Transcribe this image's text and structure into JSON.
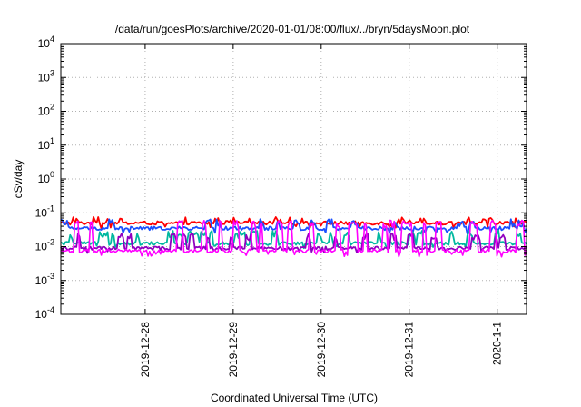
{
  "chart_data": {
    "type": "line",
    "title": "/data/run/goesPlots/archive/2020-01-01/08:00/flux/../bryn/5daysMoon.plot",
    "xlabel": "Coordinated Universal Time (UTC)",
    "ylabel": "cSv/day",
    "yscale": "log",
    "ylim": [
      0.0001,
      10000
    ],
    "xlim": [
      "2019-12-27T01:00",
      "2020-01-01T08:00"
    ],
    "grid": true,
    "x_ticks": [
      {
        "value": "2019-12-28T00:00",
        "label": "2019-12-28"
      },
      {
        "value": "2019-12-29T00:00",
        "label": "2019-12-29"
      },
      {
        "value": "2019-12-30T00:00",
        "label": "2019-12-30"
      },
      {
        "value": "2019-12-31T00:00",
        "label": "2019-12-31"
      },
      {
        "value": "2020-01-01T00:00",
        "label": "2020-1-1"
      }
    ],
    "y_ticks": [
      {
        "value": 0.0001,
        "base": "10",
        "exp": "-4"
      },
      {
        "value": 0.001,
        "base": "10",
        "exp": "-3"
      },
      {
        "value": 0.01,
        "base": "10",
        "exp": "-2"
      },
      {
        "value": 0.1,
        "base": "10",
        "exp": "-1"
      },
      {
        "value": 1,
        "base": "10",
        "exp": "0"
      },
      {
        "value": 10,
        "base": "10",
        "exp": "1"
      },
      {
        "value": 100,
        "base": "10",
        "exp": "2"
      },
      {
        "value": 1000,
        "base": "10",
        "exp": "3"
      },
      {
        "value": 10000,
        "base": "10",
        "exp": "4"
      }
    ],
    "series": [
      {
        "color": "#ff0000",
        "base": 0.05,
        "spike": 0.075,
        "dip": 0.038
      },
      {
        "color": "#1a4fff",
        "base": 0.035,
        "spike": 0.065,
        "dip": 0.025
      },
      {
        "color": "#00b8a0",
        "base": 0.0125,
        "spike": 0.03,
        "dip": 0.01
      },
      {
        "color": "#9000c0",
        "base": 0.009,
        "spike": 0.025,
        "dip": 0.0072
      },
      {
        "color": "#ff00ff",
        "base": 0.0075,
        "spike": 0.06,
        "dip": 0.0055
      }
    ]
  }
}
